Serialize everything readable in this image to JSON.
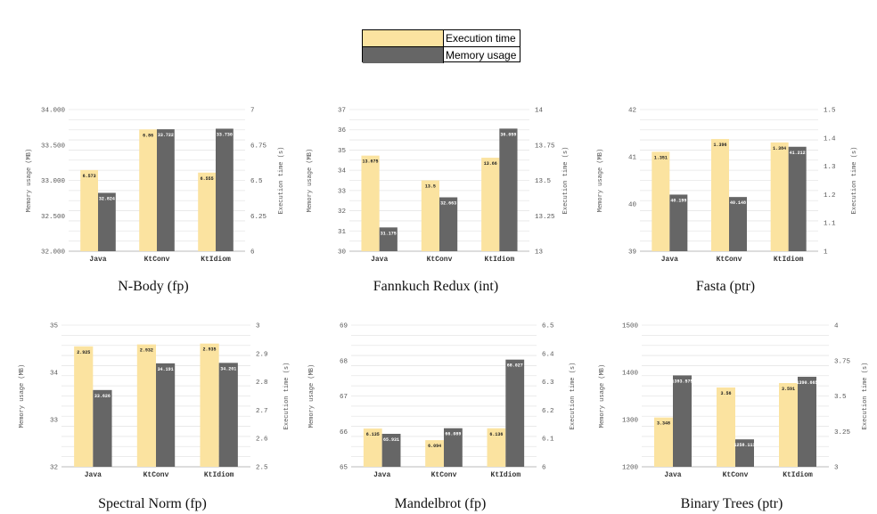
{
  "legend": {
    "items": [
      {
        "label": "Execution time",
        "color": "#FBE3A0"
      },
      {
        "label": "Memory usage",
        "color": "#666666"
      }
    ]
  },
  "chart_data": [
    {
      "type": "bar",
      "title": "N-Body (fp)",
      "categories": [
        "Java",
        "KtConv",
        "KtIdiom"
      ],
      "ylabel_left": "Memory usage (MB)",
      "ylabel_right": "Execution time (s)",
      "left_axis": {
        "min": 32000,
        "max": 34000,
        "ticks": [
          "32.000",
          "32.500",
          "33.000",
          "33.500",
          "34.000"
        ]
      },
      "right_axis": {
        "min": 6,
        "max": 7,
        "ticks": [
          "6",
          "6.25",
          "6.5",
          "6.75",
          "7"
        ]
      },
      "series": [
        {
          "name": "Execution time",
          "axis": "right",
          "values": [
            6.573,
            6.86,
            6.555
          ],
          "labels": [
            "6.573",
            "6.86",
            "6.555"
          ]
        },
        {
          "name": "Memory usage",
          "axis": "left",
          "values": [
            32824,
            33722,
            33730
          ],
          "labels": [
            "32.824",
            "33.722",
            "33.730"
          ]
        }
      ]
    },
    {
      "type": "bar",
      "title": "Fannkuch Redux (int)",
      "categories": [
        "Java",
        "KtConv",
        "KtIdiom"
      ],
      "ylabel_left": "Memory usage (MB)",
      "ylabel_right": "Execution time (s)",
      "left_axis": {
        "min": 30,
        "max": 37,
        "ticks": [
          "30",
          "31",
          "32",
          "33",
          "34",
          "35",
          "36",
          "37"
        ]
      },
      "right_axis": {
        "min": 13,
        "max": 14,
        "ticks": [
          "13",
          "13.25",
          "13.5",
          "13.75",
          "14"
        ]
      },
      "series": [
        {
          "name": "Execution time",
          "axis": "right",
          "values": [
            13.675,
            13.5,
            13.66
          ],
          "labels": [
            "13.675",
            "13.5",
            "13.66"
          ]
        },
        {
          "name": "Memory usage",
          "axis": "left",
          "values": [
            31.175,
            32.663,
            36.059
          ],
          "labels": [
            "31.175",
            "32.663",
            "36.059"
          ]
        }
      ]
    },
    {
      "type": "bar",
      "title": "Fasta (ptr)",
      "categories": [
        "Java",
        "KtConv",
        "KtIdiom"
      ],
      "ylabel_left": "Memory usage (MB)",
      "ylabel_right": "Execution time (s)",
      "left_axis": {
        "min": 39,
        "max": 42,
        "ticks": [
          "39",
          "40",
          "41",
          "42"
        ]
      },
      "right_axis": {
        "min": 1,
        "max": 1.5,
        "ticks": [
          "1",
          "1.1",
          "1.2",
          "1.3",
          "1.4",
          "1.5"
        ]
      },
      "series": [
        {
          "name": "Execution time",
          "axis": "right",
          "values": [
            1.351,
            1.396,
            1.384
          ],
          "labels": [
            "1.351",
            "1.396",
            "1.384"
          ]
        },
        {
          "name": "Memory usage",
          "axis": "left",
          "values": [
            40.199,
            40.148,
            41.212
          ],
          "labels": [
            "40.199",
            "40.148",
            "41.212"
          ]
        }
      ]
    },
    {
      "type": "bar",
      "title": "Spectral Norm (fp)",
      "categories": [
        "Java",
        "KtConv",
        "KtIdiom"
      ],
      "ylabel_left": "Memory usage (MB)",
      "ylabel_right": "Execution time (s)",
      "left_axis": {
        "min": 32,
        "max": 35,
        "ticks": [
          "32",
          "33",
          "34",
          "35"
        ]
      },
      "right_axis": {
        "min": 2.5,
        "max": 3,
        "ticks": [
          "2.5",
          "2.6",
          "2.7",
          "2.8",
          "2.9",
          "3"
        ]
      },
      "series": [
        {
          "name": "Execution time",
          "axis": "right",
          "values": [
            2.925,
            2.932,
            2.935
          ],
          "labels": [
            "2.925",
            "2.932",
            "2.935"
          ]
        },
        {
          "name": "Memory usage",
          "axis": "left",
          "values": [
            33.626,
            34.191,
            34.201
          ],
          "labels": [
            "33.626",
            "34.191",
            "34.201"
          ]
        }
      ]
    },
    {
      "type": "bar",
      "title": "Mandelbrot (fp)",
      "categories": [
        "Java",
        "KtConv",
        "KtIdiom"
      ],
      "ylabel_left": "Memory usage (MB)",
      "ylabel_right": "Execution time (s)",
      "left_axis": {
        "min": 65,
        "max": 69,
        "ticks": [
          "65",
          "66",
          "67",
          "68",
          "69"
        ]
      },
      "right_axis": {
        "min": 6,
        "max": 6.5,
        "ticks": [
          "6",
          "6.1",
          "6.2",
          "6.3",
          "6.4",
          "6.5"
        ]
      },
      "series": [
        {
          "name": "Execution time",
          "axis": "right",
          "values": [
            6.135,
            6.094,
            6.136
          ],
          "labels": [
            "6.135",
            "6.094",
            "6.136"
          ]
        },
        {
          "name": "Memory usage",
          "axis": "left",
          "values": [
            65.931,
            66.089,
            68.027
          ],
          "labels": [
            "65.931",
            "66.089",
            "68.027"
          ]
        }
      ]
    },
    {
      "type": "bar",
      "title": "Binary Trees (ptr)",
      "categories": [
        "Java",
        "KtConv",
        "KtIdiom"
      ],
      "ylabel_left": "Memory usage (MB)",
      "ylabel_right": "Execution time (s)",
      "left_axis": {
        "min": 1200,
        "max": 1500,
        "ticks": [
          "1200",
          "1300",
          "1400",
          "1500"
        ]
      },
      "right_axis": {
        "min": 3,
        "max": 4,
        "ticks": [
          "3",
          "3.25",
          "3.5",
          "3.75",
          "4"
        ]
      },
      "series": [
        {
          "name": "Execution time",
          "axis": "right",
          "values": [
            3.348,
            3.56,
            3.591
          ],
          "labels": [
            "3.348",
            "3.56",
            "3.591"
          ]
        },
        {
          "name": "Memory usage",
          "axis": "left",
          "values": [
            1393.575,
            1258.111,
            1390.665
          ],
          "labels": [
            "1393.575",
            "1258.111",
            "1390.665"
          ]
        }
      ]
    }
  ]
}
